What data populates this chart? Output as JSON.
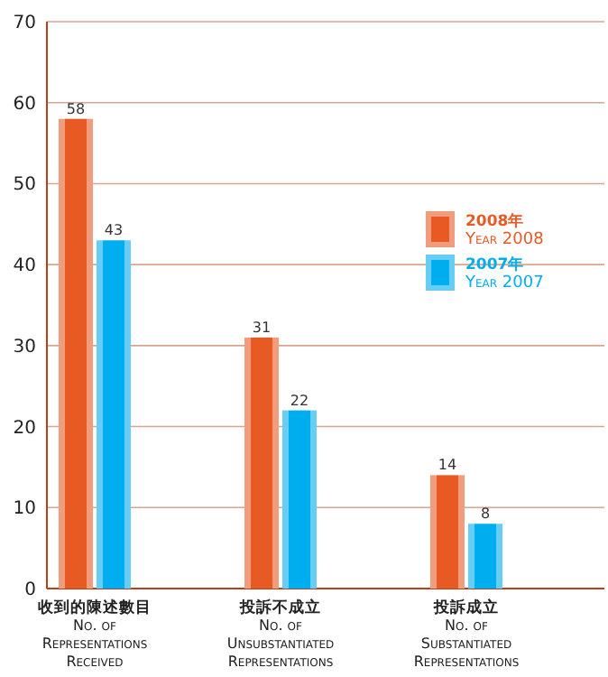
{
  "chart_data": {
    "type": "bar",
    "categories": [
      "收到的陳述數目\nNo. of\nRepresentations\nReceived",
      "投訴不成立\nNo. of\nUnsubstantiated\nRepresentations",
      "投訴成立\nNo. of\nSubstantiated\nRepresentations"
    ],
    "series": [
      {
        "name": "2008年\nYear 2008",
        "color": "#e85a24",
        "values": [
          58,
          31,
          14
        ]
      },
      {
        "name": "2007年\nYear 2007",
        "color": "#00aeef",
        "values": [
          43,
          22,
          8
        ]
      }
    ],
    "ylim": [
      0,
      70
    ],
    "yticks": [
      0,
      10,
      20,
      30,
      40,
      50,
      60,
      70
    ],
    "grid": "y",
    "legend": "right",
    "data_labels": true
  }
}
